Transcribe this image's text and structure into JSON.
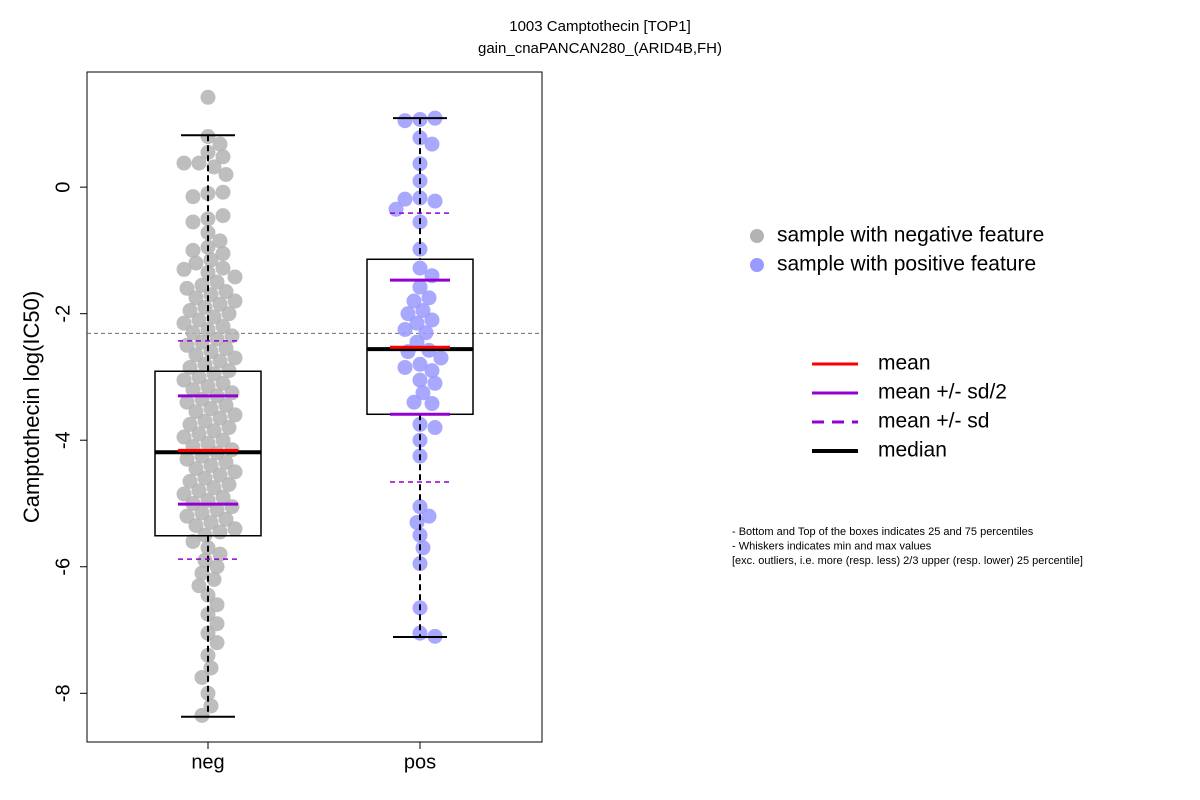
{
  "chart_data": {
    "type": "box",
    "title": "1003 Camptothecin [TOP1]",
    "subtitle": "gain_cnaPANCAN280_(ARID4B,FH)",
    "y_label": "Camptothecin log(IC50)",
    "ylim": [
      -8.77,
      1.82
    ],
    "yticks": [
      0,
      -2,
      -4,
      -6,
      -8
    ],
    "reference_line": -2.31,
    "groups": [
      {
        "name": "neg",
        "color": "#b3b3b3",
        "whisker_low": -8.37,
        "q1": -5.51,
        "median": -4.19,
        "q3": -2.91,
        "whisker_high": 0.82,
        "mean": -4.16,
        "sd_half_low": -5.01,
        "sd_half_high": -3.3,
        "sd_low": -5.88,
        "sd_high": -2.43,
        "points": [
          1.42,
          0.8,
          0.68,
          0.55,
          0.48,
          0.38,
          0.32,
          0.38,
          0.2,
          -0.1,
          -0.08,
          -0.15,
          -0.5,
          -0.45,
          -0.55,
          -0.72,
          -0.85,
          -0.95,
          -1.0,
          -1.05,
          -1.15,
          -1.2,
          -1.28,
          -1.3,
          -1.35,
          -1.42,
          -1.5,
          -1.55,
          -1.6,
          -1.65,
          -1.7,
          -1.75,
          -1.8,
          -1.85,
          -1.9,
          -1.95,
          -2.0,
          -2.05,
          -2.1,
          -2.15,
          -2.2,
          -2.25,
          -2.3,
          -2.35,
          -2.4,
          -2.45,
          -2.5,
          -2.55,
          -2.6,
          -2.65,
          -2.7,
          -2.75,
          -2.8,
          -2.85,
          -2.9,
          -2.95,
          -3.0,
          -3.05,
          -3.1,
          -3.15,
          -3.2,
          -3.25,
          -3.3,
          -3.35,
          -3.4,
          -3.45,
          -3.5,
          -3.55,
          -3.6,
          -3.65,
          -3.7,
          -3.75,
          -3.8,
          -3.85,
          -3.9,
          -3.95,
          -4.0,
          -4.05,
          -4.1,
          -4.15,
          -4.2,
          -4.25,
          -4.3,
          -4.35,
          -4.4,
          -4.45,
          -4.5,
          -4.55,
          -4.6,
          -4.65,
          -4.7,
          -4.75,
          -4.8,
          -4.85,
          -4.9,
          -4.95,
          -5.0,
          -5.05,
          -5.1,
          -5.15,
          -5.2,
          -5.25,
          -5.3,
          -5.35,
          -5.4,
          -5.45,
          -5.5,
          -5.6,
          -5.7,
          -5.8,
          -5.9,
          -6.0,
          -6.1,
          -6.2,
          -6.3,
          -6.45,
          -6.6,
          -6.75,
          -6.9,
          -7.05,
          -7.2,
          -7.4,
          -7.6,
          -7.75,
          -8.0,
          -8.2,
          -8.35
        ]
      },
      {
        "name": "pos",
        "color": "#9999ff",
        "whisker_low": -7.11,
        "q1": -3.59,
        "median": -2.56,
        "q3": -1.14,
        "whisker_high": 1.09,
        "mean": -2.53,
        "sd_half_low": -3.59,
        "sd_half_high": -1.47,
        "sd_low": -4.66,
        "sd_high": -0.41,
        "points": [
          1.07,
          1.09,
          1.05,
          0.78,
          0.68,
          0.37,
          0.1,
          -0.17,
          -0.22,
          -0.19,
          -0.35,
          -0.55,
          -0.98,
          -1.28,
          -1.4,
          -1.58,
          -1.75,
          -1.8,
          -1.95,
          -2.0,
          -2.1,
          -2.15,
          -2.25,
          -2.3,
          -2.45,
          -2.58,
          -2.6,
          -2.7,
          -2.8,
          -2.85,
          -2.9,
          -3.05,
          -3.1,
          -3.25,
          -3.4,
          -3.42,
          -3.75,
          -3.8,
          -4.0,
          -4.25,
          -5.05,
          -5.2,
          -5.3,
          -5.5,
          -5.7,
          -5.95,
          -6.65,
          -7.05,
          -7.1
        ]
      }
    ],
    "point_legend": [
      "sample with negative feature",
      "sample with positive feature"
    ],
    "line_legend": [
      {
        "label": "mean",
        "color": "#ff0000"
      },
      {
        "label": "mean +/- sd/2",
        "color": "#9400d3"
      },
      {
        "label": "mean +/- sd",
        "color": "#9400d3"
      },
      {
        "label": "median",
        "color": "#000000"
      }
    ],
    "notes": [
      "- Bottom and Top of the boxes indicates 25 and 75 percentiles",
      "- Whiskers indicates min and max values",
      "[exc. outliers, i.e. more (resp. less) 2/3 upper (resp. lower) 25 percentile]"
    ]
  }
}
